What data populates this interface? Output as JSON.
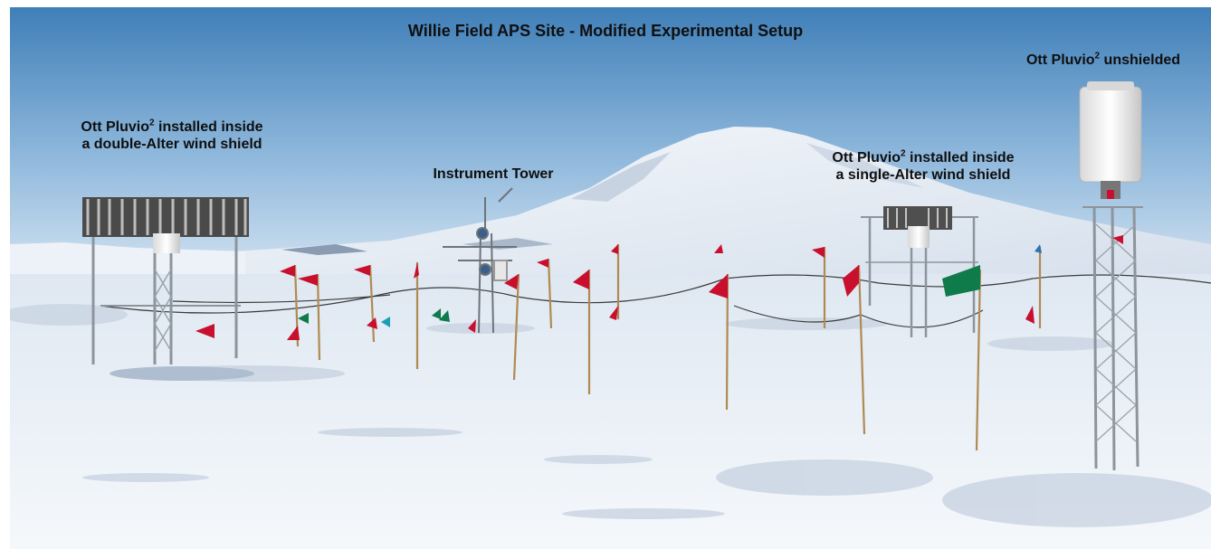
{
  "title": "Willie Field APS Site - Modified Experimental Setup",
  "labels": {
    "double_alter": {
      "line1_pre": "Ott Pluvio",
      "line1_sup": "2",
      "line1_post": " installed inside",
      "line2": "a double-Alter wind shield"
    },
    "instrument_tower": "Instrument Tower",
    "single_alter": {
      "line1_pre": "Ott Pluvio",
      "line1_sup": "2",
      "line1_post": " installed inside",
      "line2": "a single-Alter wind shield"
    },
    "unshielded": {
      "pre": "Ott Pluvio",
      "sup": "2",
      "post": " unshielded"
    }
  },
  "colors": {
    "sky_top": "#3f7fb8",
    "sky_bottom": "#c8dcee",
    "snow": "#eef3f9",
    "snow_shadow": "#c9d4e2",
    "mountain_shade": "#aab9ce",
    "flag_red": "#c8102e",
    "flag_green": "#0f7a4a",
    "metal": "#9aa3ab",
    "pole": "#b08a52"
  }
}
